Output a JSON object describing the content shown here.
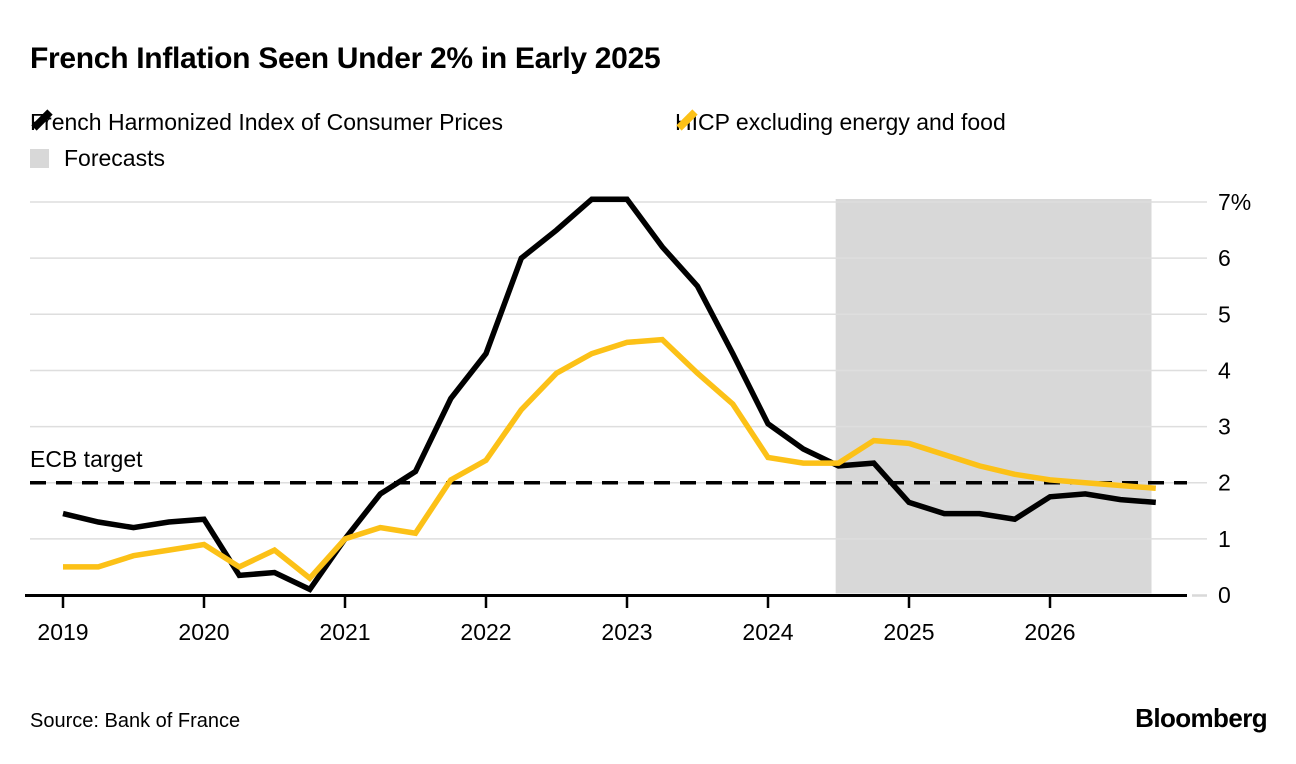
{
  "page": {
    "title": "French Inflation Seen Under 2% in Early 2025",
    "source": "Source: Bank of France",
    "brand": "Bloomberg"
  },
  "legend": {
    "items": [
      {
        "label": "French Harmonized Index of Consumer Prices",
        "swatch": "black-line",
        "color": "#000000"
      },
      {
        "label": "HICP excluding energy and food",
        "swatch": "yellow-line",
        "color": "#fcc117"
      },
      {
        "label": "Forecasts",
        "swatch": "gray-square",
        "color": "#d8d8d8"
      }
    ]
  },
  "chart_data": {
    "type": "line",
    "title": "French Inflation Seen Under 2% in Early 2025",
    "x_unit": "quarterly",
    "x_start_year": 2019,
    "x_tick_labels": [
      "2019",
      "2020",
      "2021",
      "2022",
      "2023",
      "2024",
      "2025",
      "2026"
    ],
    "y_tick_labels": [
      "0",
      "1",
      "2",
      "3",
      "4",
      "5",
      "6",
      "7%"
    ],
    "ylim": [
      0,
      7
    ],
    "grid": true,
    "annotation": {
      "label": "ECB target",
      "value": 2,
      "style": "dashed"
    },
    "forecast_band": {
      "label": "Forecasts",
      "x_start_year": 2024.48,
      "x_end_year": 2026.72,
      "color": "#d8d8d8"
    },
    "series": [
      {
        "name": "French Harmonized Index of Consumer Prices",
        "color": "#000000",
        "values": [
          1.45,
          1.3,
          1.2,
          1.3,
          1.35,
          0.35,
          0.4,
          0.1,
          1.0,
          1.8,
          2.2,
          3.5,
          4.3,
          6.0,
          6.5,
          7.05,
          7.05,
          6.2,
          5.5,
          4.3,
          3.05,
          2.6,
          2.3,
          2.35,
          1.65,
          1.45,
          1.45,
          1.35,
          1.75,
          1.8,
          1.7,
          1.65
        ]
      },
      {
        "name": "HICP excluding energy and food",
        "color": "#fcc117",
        "values": [
          0.5,
          0.5,
          0.7,
          0.8,
          0.9,
          0.5,
          0.8,
          0.3,
          1.0,
          1.2,
          1.1,
          2.05,
          2.4,
          3.3,
          3.95,
          4.3,
          4.5,
          4.55,
          3.95,
          3.4,
          2.45,
          2.35,
          2.35,
          2.75,
          2.7,
          2.5,
          2.3,
          2.15,
          2.05,
          2.0,
          1.95,
          1.9
        ]
      }
    ]
  }
}
